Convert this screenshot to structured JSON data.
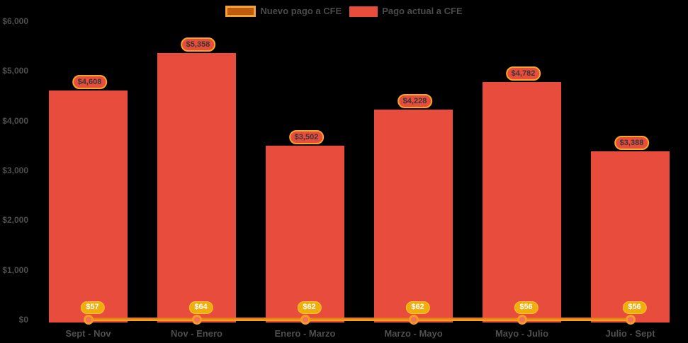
{
  "chart_data": {
    "type": "bar",
    "title": "",
    "categories": [
      "Sept - Nov",
      "Nov - Enero",
      "Enero - Marzo",
      "Marzo - Mayo",
      "Mayo - Julio",
      "Julio - Sept"
    ],
    "series": [
      {
        "name": "Nuevo pago a CFE",
        "type": "line",
        "values": [
          57,
          64,
          62,
          62,
          56,
          56
        ],
        "labels": [
          "$57",
          "$64",
          "$62",
          "$62",
          "$56",
          "$56"
        ],
        "line_color_top": "#e2691b",
        "line_color_bottom": "#f9ae19",
        "marker_fill": "#f4715c",
        "marker_border": "#f59d20",
        "label_bg": "#f0ad0e",
        "label_border": "#fdc52e",
        "label_text_color": "#ffffff",
        "swatch_fill": "#c05a11",
        "swatch_border": "#f1a33a"
      },
      {
        "name": "Pago actual a CFE",
        "type": "bar",
        "values": [
          4608,
          5358,
          3502,
          4228,
          4782,
          3388
        ],
        "labels": [
          "$4,608",
          "$5,358",
          "$3,502",
          "$4,228",
          "$4,782",
          "$3,388"
        ],
        "color": "#e74c3c",
        "label_bg": "#e74c3c",
        "label_border": "#f5a623",
        "label_text_color": "#383838"
      }
    ],
    "yticks": [
      {
        "value": 0,
        "label": "$0"
      },
      {
        "value": 1000,
        "label": "$1,000"
      },
      {
        "value": 2000,
        "label": "$2,000"
      },
      {
        "value": 3000,
        "label": "$3,000"
      },
      {
        "value": 4000,
        "label": "$4,000"
      },
      {
        "value": 5000,
        "label": "$5,000"
      },
      {
        "value": 6000,
        "label": "$6,000"
      }
    ],
    "ylim": [
      0,
      6000
    ],
    "grid": false,
    "legend_position": "top",
    "background": "#000000",
    "axis_text_color": "#4e4e4e",
    "legend_text_color": "#4a4a4a"
  }
}
